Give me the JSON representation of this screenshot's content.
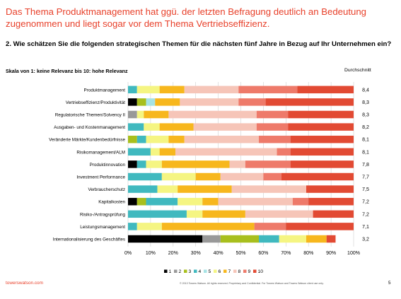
{
  "header": {
    "headline": "Das Thema Produktmanagement hat ggü. der letzten Befragung deutlich an Bedeutung zugenommen und liegt sogar vor dem Thema Vertriebseffizienz.",
    "question": "2. Wie schätzen Sie die folgenden strategischen Themen für die nächsten fünf Jahre in Bezug auf Ihr Unternehmen ein?"
  },
  "chart_data": {
    "type": "bar",
    "orientation": "horizontal",
    "stacked": true,
    "scale_label": "Skala von 1: keine Relevanz bis 10: hohe Relevanz",
    "average_header": "Durchschnitt",
    "categories": [
      "Produktmanagement",
      "Vertriebseffizienz/Produktivität",
      "Regulatorische Themen/Solvency II",
      "Ausgaben- und Kostenmanagement",
      "Veränderte Märkte/Kundenbedürfnisse",
      "Risikomanagement/ALM",
      "Produktinnovation",
      "Investment Performance",
      "Verbraucherschutz",
      "Kapitalkosten",
      "Risiko-/Antragsprüfung",
      "Leistungsmanagement",
      "Internationalisierung des Geschäftes"
    ],
    "averages": [
      "8,4",
      "8,3",
      "8,3",
      "8,2",
      "8,1",
      "8,1",
      "7,8",
      "7,7",
      "7,5",
      "7,2",
      "7,2",
      "7,1",
      "3,2"
    ],
    "series": [
      {
        "name": "1",
        "color": "#000000",
        "values": [
          0,
          4,
          0,
          0,
          0,
          0,
          4,
          0,
          0,
          4,
          0,
          0,
          33
        ]
      },
      {
        "name": "2",
        "color": "#999999",
        "values": [
          0,
          0,
          4,
          0,
          0,
          0,
          0,
          0,
          0,
          0,
          0,
          0,
          8
        ]
      },
      {
        "name": "3",
        "color": "#a8bf1d",
        "values": [
          0,
          4,
          0,
          0,
          4,
          0,
          0,
          0,
          0,
          4,
          0,
          0,
          17
        ]
      },
      {
        "name": "4",
        "color": "#40b9bf",
        "values": [
          4,
          0,
          0,
          7,
          4,
          10,
          4,
          15,
          13,
          14,
          26,
          4,
          9
        ]
      },
      {
        "name": "5",
        "color": "#a6e3e5",
        "values": [
          0,
          4,
          0,
          0,
          0,
          0,
          0,
          0,
          0,
          0,
          0,
          0,
          0
        ]
      },
      {
        "name": "6",
        "color": "#f5f582",
        "values": [
          10,
          0,
          3,
          7,
          10,
          4,
          7,
          15,
          9,
          11,
          7,
          11,
          12
        ]
      },
      {
        "name": "7",
        "color": "#f7b71d",
        "values": [
          11,
          11,
          11,
          15,
          7,
          7,
          30,
          11,
          24,
          7,
          19,
          41,
          9
        ]
      },
      {
        "name": "8",
        "color": "#f6c5b8",
        "values": [
          24,
          26,
          39,
          28,
          33,
          45,
          7,
          19,
          33,
          33,
          30,
          0,
          0
        ]
      },
      {
        "name": "9",
        "color": "#ee7a6a",
        "values": [
          26,
          12,
          14,
          14,
          14,
          6,
          20,
          8,
          0,
          7,
          0,
          14,
          0
        ]
      },
      {
        "name": "10",
        "color": "#e24a33",
        "values": [
          25,
          39,
          29,
          29,
          28,
          28,
          28,
          32,
          21,
          20,
          18,
          30,
          4
        ]
      }
    ],
    "x_ticks": [
      "0%",
      "10%",
      "20%",
      "30%",
      "40%",
      "50%",
      "60%",
      "70%",
      "80%",
      "90%",
      "100%"
    ],
    "xlim": [
      0,
      100
    ],
    "grid": "vertical",
    "legend": "bottom"
  },
  "footer": {
    "brand": "towerswatson.com",
    "copyright": "© 2013 Towers Watson. All rights reserved. Proprietary and Confidential. For Towers Watson and Towers Watson client use only.",
    "page": "5"
  }
}
